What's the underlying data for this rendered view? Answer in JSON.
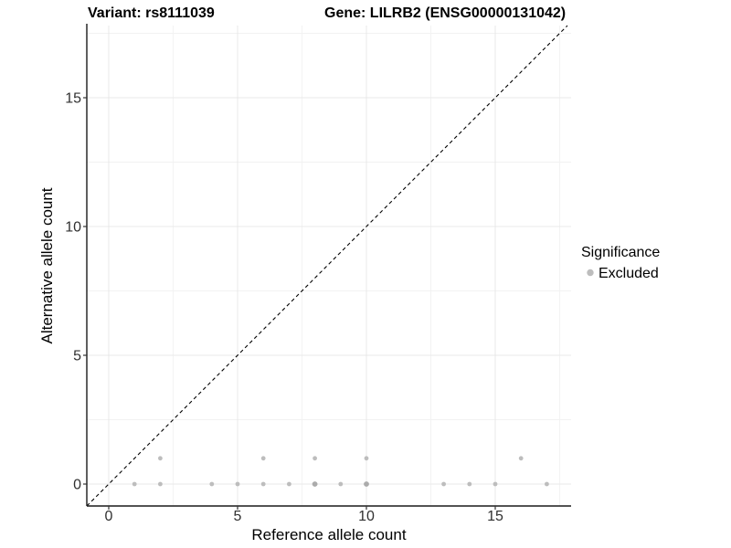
{
  "titles": {
    "variant": "Variant: rs8111039",
    "gene": "Gene: LILRB2 (ENSG00000131042)"
  },
  "axes": {
    "x_label": "Reference allele count",
    "y_label": "Alternative allele count"
  },
  "legend": {
    "title": "Significance",
    "items": [
      {
        "label": "Excluded",
        "color": "#bdbdbd"
      }
    ]
  },
  "colors": {
    "background": "#ffffff",
    "point": "#bdbdbd",
    "point_overplot": "#ababab",
    "grid_major": "#e8e8e8",
    "grid_minor": "#f2f2f2",
    "axis_line": "#1a1a1a",
    "tick_mark": "#333333",
    "identity_line": "#000000"
  },
  "chart_data": {
    "type": "scatter",
    "title": "Variant: rs8111039 — Gene: LILRB2 (ENSG00000131042)",
    "xlabel": "Reference allele count",
    "ylabel": "Alternative allele count",
    "xlim": [
      -0.9,
      17.95
    ],
    "ylim": [
      -0.85,
      17.8
    ],
    "x_major_ticks": [
      0,
      5,
      10,
      15
    ],
    "x_minor_ticks": [
      2.5,
      7.5,
      12.5,
      17.5
    ],
    "y_major_ticks": [
      0,
      5,
      10,
      15
    ],
    "y_minor_ticks": [
      2.5,
      7.5,
      12.5,
      17.5
    ],
    "grid": true,
    "legend_position": "right",
    "identity_line": {
      "style": "dashed",
      "from": [
        -0.85,
        -0.85
      ],
      "to": [
        17.8,
        17.8
      ]
    },
    "series": [
      {
        "name": "Excluded",
        "color": "#bdbdbd",
        "points": [
          {
            "x": 1,
            "y": 0,
            "overplot": false
          },
          {
            "x": 2,
            "y": 0,
            "overplot": false
          },
          {
            "x": 4,
            "y": 0,
            "overplot": false
          },
          {
            "x": 5,
            "y": 0,
            "overplot": false
          },
          {
            "x": 6,
            "y": 0,
            "overplot": false
          },
          {
            "x": 7,
            "y": 0,
            "overplot": false
          },
          {
            "x": 8,
            "y": 0,
            "overplot": true
          },
          {
            "x": 9,
            "y": 0,
            "overplot": false
          },
          {
            "x": 10,
            "y": 0,
            "overplot": true
          },
          {
            "x": 13,
            "y": 0,
            "overplot": false
          },
          {
            "x": 14,
            "y": 0,
            "overplot": false
          },
          {
            "x": 15,
            "y": 0,
            "overplot": false
          },
          {
            "x": 17,
            "y": 0,
            "overplot": false
          },
          {
            "x": 2,
            "y": 1,
            "overplot": false
          },
          {
            "x": 6,
            "y": 1,
            "overplot": false
          },
          {
            "x": 8,
            "y": 1,
            "overplot": false
          },
          {
            "x": 10,
            "y": 1,
            "overplot": false
          },
          {
            "x": 16,
            "y": 1,
            "overplot": false
          }
        ]
      }
    ]
  }
}
